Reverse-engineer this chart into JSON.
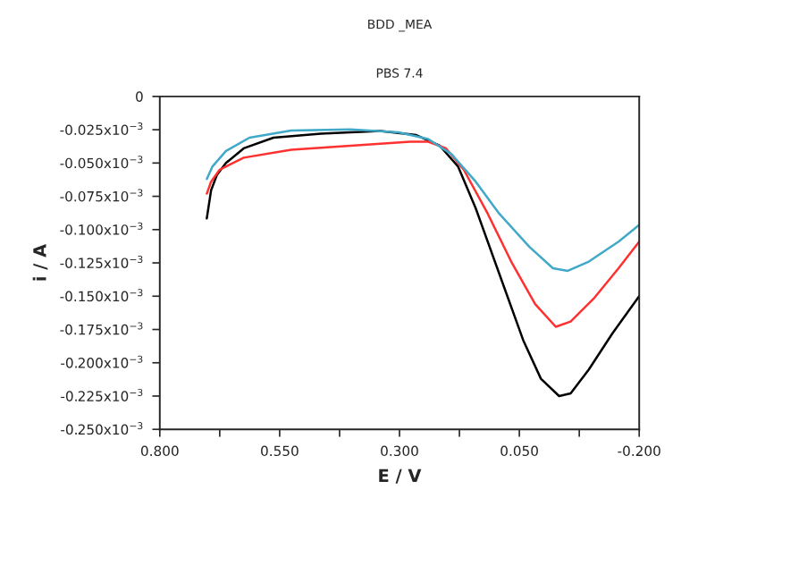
{
  "chart_data": {
    "type": "line",
    "title": "BDD _MEA",
    "subtitle": "PBS 7.4",
    "xlabel": "E / V",
    "ylabel": "i / A",
    "xlim": [
      0.8,
      -0.2
    ],
    "ylim": [
      -0.00025,
      0
    ],
    "xticks": [
      {
        "value": 0.8,
        "label": "0.800"
      },
      {
        "value": 0.675,
        "label": null
      },
      {
        "value": 0.55,
        "label": "0.550"
      },
      {
        "value": 0.425,
        "label": null
      },
      {
        "value": 0.3,
        "label": "0.300"
      },
      {
        "value": 0.175,
        "label": null
      },
      {
        "value": 0.05,
        "label": "0.050"
      },
      {
        "value": -0.075,
        "label": null
      },
      {
        "value": -0.2,
        "label": "-0.200"
      }
    ],
    "yticks": [
      {
        "value": 0,
        "label": "0"
      },
      {
        "value": -2.5e-05,
        "label": "-0.025x10$^{−3}$"
      },
      {
        "value": -5e-05,
        "label": "-0.050x10$^{−3}$"
      },
      {
        "value": -7.5e-05,
        "label": "-0.075x10$^{−3}$"
      },
      {
        "value": -0.0001,
        "label": "-0.100x10$^{−3}$"
      },
      {
        "value": -0.000125,
        "label": "-0.125x10$^{−3}$"
      },
      {
        "value": -0.00015,
        "label": "-0.150x10$^{−3}$"
      },
      {
        "value": -0.000175,
        "label": "-0.175x10$^{−3}$"
      },
      {
        "value": -0.0002,
        "label": "-0.200x10$^{−3}$"
      },
      {
        "value": -0.000225,
        "label": "-0.225x10$^{−3}$"
      },
      {
        "value": -0.00025,
        "label": "-0.250x10$^{−3}$"
      }
    ],
    "grid": false,
    "marker": "none",
    "line_style": "solid",
    "series": [
      {
        "color": "#000000",
        "x": [
          0.702,
          0.693,
          0.681,
          0.662,
          0.625,
          0.563,
          0.464,
          0.34,
          0.265,
          0.216,
          0.178,
          0.141,
          0.092,
          0.042,
          0.005,
          -0.033,
          -0.057,
          -0.095,
          -0.144,
          -0.2
        ],
        "values": [
          -9.16e-05,
          -7.05e-05,
          -5.9e-05,
          -5e-05,
          -3.9e-05,
          -3.1e-05,
          -2.8e-05,
          -2.6e-05,
          -2.9e-05,
          -3.7e-05,
          -5.25e-05,
          -8.4e-05,
          -0.000133,
          -0.000183,
          -0.000212,
          -0.000225,
          -0.000223,
          -0.000205,
          -0.000178,
          -0.00015
        ]
      },
      {
        "color": "#ff3030",
        "x": [
          0.702,
          0.693,
          0.675,
          0.625,
          0.526,
          0.402,
          0.278,
          0.24,
          0.203,
          0.166,
          0.116,
          0.067,
          0.017,
          -0.026,
          -0.057,
          -0.107,
          -0.157,
          -0.2
        ],
        "values": [
          -7.3e-05,
          -6.4e-05,
          -5.5e-05,
          -4.6e-05,
          -4e-05,
          -3.7e-05,
          -3.4e-05,
          -3.4e-05,
          -3.9e-05,
          -5.5e-05,
          -8.8e-05,
          -0.000124,
          -0.000156,
          -0.000173,
          -0.000169,
          -0.000151,
          -0.000129,
          -0.000109
        ]
      },
      {
        "color": "#40a8c8",
        "x": [
          0.702,
          0.69,
          0.662,
          0.613,
          0.526,
          0.402,
          0.302,
          0.24,
          0.191,
          0.141,
          0.092,
          0.029,
          -0.02,
          -0.051,
          -0.095,
          -0.157,
          -0.2
        ],
        "values": [
          -6.2e-05,
          -5.25e-05,
          -4.1e-05,
          -3.1e-05,
          -2.56e-05,
          -2.47e-05,
          -2.7e-05,
          -3.2e-05,
          -4.35e-05,
          -6.4e-05,
          -8.8e-05,
          -0.000113,
          -0.000129,
          -0.000131,
          -0.000124,
          -0.000109,
          -9.65e-05
        ]
      }
    ]
  }
}
